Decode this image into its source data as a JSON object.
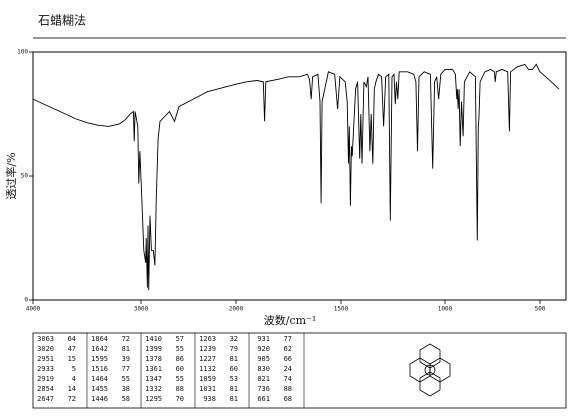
{
  "chart_data": {
    "type": "line",
    "title": "石蜡糊法",
    "x_label": "波数/cm⁻¹",
    "y_label": "透过率/%",
    "color": "#000000",
    "xlim": [
      4000,
      400
    ],
    "ylim": [
      0,
      100
    ],
    "xticks": [
      4000,
      3000,
      2000,
      1500,
      1000,
      500
    ],
    "yticks": [
      0,
      50,
      100
    ],
    "x": [
      4000,
      3900,
      3800,
      3700,
      3600,
      3500,
      3400,
      3300,
      3200,
      3150,
      3100,
      3070,
      3063,
      3055,
      3030,
      3020,
      3010,
      2990,
      2970,
      2951,
      2945,
      2933,
      2926,
      2919,
      2905,
      2890,
      2870,
      2854,
      2840,
      2820,
      2800,
      2700,
      2647,
      2600,
      2500,
      2400,
      2300,
      2200,
      2100,
      2000,
      1950,
      1900,
      1870,
      1864,
      1858,
      1800,
      1750,
      1700,
      1660,
      1650,
      1642,
      1635,
      1610,
      1600,
      1595,
      1590,
      1560,
      1530,
      1516,
      1505,
      1480,
      1470,
      1464,
      1460,
      1455,
      1450,
      1446,
      1430,
      1420,
      1410,
      1405,
      1399,
      1390,
      1378,
      1370,
      1361,
      1355,
      1347,
      1340,
      1332,
      1320,
      1305,
      1295,
      1285,
      1270,
      1263,
      1255,
      1245,
      1239,
      1233,
      1227,
      1220,
      1180,
      1150,
      1140,
      1132,
      1125,
      1100,
      1070,
      1059,
      1050,
      1040,
      1031,
      1020,
      1000,
      960,
      945,
      938,
      935,
      931,
      926,
      920,
      913,
      905,
      898,
      870,
      840,
      830,
      825,
      821,
      815,
      790,
      760,
      740,
      736,
      730,
      700,
      670,
      661,
      655,
      620,
      580,
      560,
      540,
      520,
      500,
      470,
      440,
      400
    ],
    "values": [
      81,
      79,
      77,
      75,
      73,
      71.5,
      70.5,
      70,
      71,
      72.5,
      75,
      76,
      64,
      76,
      70,
      47,
      60,
      40,
      20,
      15,
      25,
      5,
      30,
      4,
      34,
      20,
      20,
      14,
      40,
      65,
      72,
      76,
      72,
      78,
      80,
      82,
      84,
      85,
      86,
      87,
      88,
      88.5,
      88,
      72,
      88,
      89,
      90,
      90,
      91,
      89,
      81,
      90,
      91,
      80,
      39,
      80,
      92,
      91,
      77,
      90,
      88,
      80,
      55,
      70,
      38,
      62,
      58,
      85,
      88,
      57,
      75,
      55,
      88,
      86,
      90,
      60,
      75,
      55,
      85,
      88,
      91,
      90,
      70,
      90,
      91,
      32,
      90,
      91,
      79,
      88,
      81,
      92,
      92,
      91,
      88,
      60,
      90,
      92,
      91,
      53,
      88,
      90,
      81,
      91,
      93,
      93,
      91,
      81,
      85,
      77,
      85,
      62,
      80,
      66,
      88,
      92,
      90,
      24,
      70,
      74,
      88,
      92,
      93,
      92,
      88,
      92,
      93,
      92,
      68,
      92,
      94,
      95,
      93,
      93,
      95,
      92,
      90,
      88,
      85
    ]
  },
  "peak_table": [
    [
      [
        3063,
        64
      ],
      [
        3020,
        47
      ],
      [
        2951,
        15
      ],
      [
        2933,
        5
      ],
      [
        2919,
        4
      ],
      [
        2854,
        14
      ],
      [
        2647,
        72
      ]
    ],
    [
      [
        1864,
        72
      ],
      [
        1642,
        81
      ],
      [
        1595,
        39
      ],
      [
        1516,
        77
      ],
      [
        1464,
        55
      ],
      [
        1455,
        38
      ],
      [
        1446,
        58
      ]
    ],
    [
      [
        1410,
        57
      ],
      [
        1399,
        55
      ],
      [
        1378,
        86
      ],
      [
        1361,
        60
      ],
      [
        1347,
        55
      ],
      [
        1332,
        88
      ],
      [
        1295,
        70
      ]
    ],
    [
      [
        1263,
        32
      ],
      [
        1239,
        79
      ],
      [
        1227,
        81
      ],
      [
        1132,
        60
      ],
      [
        1059,
        53
      ],
      [
        1031,
        81
      ],
      [
        938,
        81
      ]
    ],
    [
      [
        931,
        77
      ],
      [
        920,
        62
      ],
      [
        905,
        66
      ],
      [
        830,
        24
      ],
      [
        821,
        74
      ],
      [
        736,
        88
      ],
      [
        661,
        68
      ]
    ]
  ]
}
